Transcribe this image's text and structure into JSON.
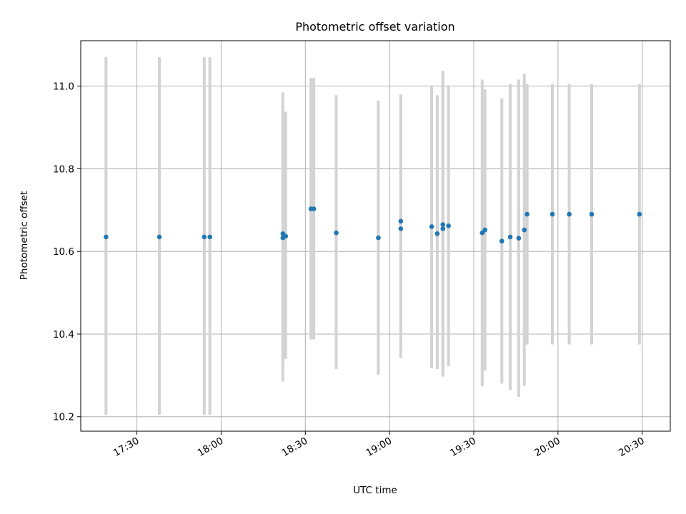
{
  "chart_data": {
    "type": "scatter",
    "title": "Photometric offset variation",
    "xlabel": "UTC time",
    "ylabel": "Photometric offset",
    "xlim": [
      "17:10",
      "20:40"
    ],
    "ylim": [
      10.165,
      11.11
    ],
    "x_ticks": [
      "17:30",
      "18:00",
      "18:30",
      "19:00",
      "19:30",
      "20:00",
      "20:30"
    ],
    "y_ticks": [
      "10.2",
      "10.4",
      "10.6",
      "10.8",
      "11.0"
    ],
    "grid": true,
    "marker_color": "#1f77b4",
    "errorbar_color": "#d3d3d3",
    "points": [
      {
        "t": "17:19",
        "y": 10.635,
        "lo": 10.205,
        "hi": 11.07
      },
      {
        "t": "17:38",
        "y": 10.635,
        "lo": 10.205,
        "hi": 11.07
      },
      {
        "t": "17:54",
        "y": 10.635,
        "lo": 10.205,
        "hi": 11.07
      },
      {
        "t": "17:56",
        "y": 10.635,
        "lo": 10.205,
        "hi": 11.07
      },
      {
        "t": "18:22",
        "y": 10.633,
        "lo": 10.285,
        "hi": 10.985
      },
      {
        "t": "18:22",
        "y": 10.643,
        "lo": 10.33,
        "hi": 10.955
      },
      {
        "t": "18:23",
        "y": 10.637,
        "lo": 10.34,
        "hi": 10.938
      },
      {
        "t": "18:32",
        "y": 10.703,
        "lo": 10.387,
        "hi": 11.02
      },
      {
        "t": "18:33",
        "y": 10.703,
        "lo": 10.387,
        "hi": 11.02
      },
      {
        "t": "18:41",
        "y": 10.645,
        "lo": 10.315,
        "hi": 10.978
      },
      {
        "t": "18:56",
        "y": 10.633,
        "lo": 10.302,
        "hi": 10.965
      },
      {
        "t": "19:04",
        "y": 10.655,
        "lo": 10.342,
        "hi": 10.97
      },
      {
        "t": "19:04",
        "y": 10.673,
        "lo": 10.37,
        "hi": 10.98
      },
      {
        "t": "19:15",
        "y": 10.66,
        "lo": 10.318,
        "hi": 11.002
      },
      {
        "t": "19:17",
        "y": 10.643,
        "lo": 10.315,
        "hi": 10.978
      },
      {
        "t": "19:19",
        "y": 10.665,
        "lo": 10.297,
        "hi": 11.037
      },
      {
        "t": "19:19",
        "y": 10.655,
        "lo": 10.305,
        "hi": 11.005
      },
      {
        "t": "19:21",
        "y": 10.662,
        "lo": 10.322,
        "hi": 11.002
      },
      {
        "t": "19:33",
        "y": 10.645,
        "lo": 10.274,
        "hi": 11.016
      },
      {
        "t": "19:34",
        "y": 10.652,
        "lo": 10.312,
        "hi": 10.992
      },
      {
        "t": "19:40",
        "y": 10.625,
        "lo": 10.28,
        "hi": 10.97
      },
      {
        "t": "19:43",
        "y": 10.635,
        "lo": 10.265,
        "hi": 11.005
      },
      {
        "t": "19:46",
        "y": 10.632,
        "lo": 10.248,
        "hi": 11.016
      },
      {
        "t": "19:48",
        "y": 10.652,
        "lo": 10.275,
        "hi": 11.03
      },
      {
        "t": "19:49",
        "y": 10.69,
        "lo": 10.375,
        "hi": 11.005
      },
      {
        "t": "19:58",
        "y": 10.69,
        "lo": 10.375,
        "hi": 11.005
      },
      {
        "t": "20:04",
        "y": 10.69,
        "lo": 10.375,
        "hi": 11.005
      },
      {
        "t": "20:12",
        "y": 10.69,
        "lo": 10.375,
        "hi": 11.005
      },
      {
        "t": "20:29",
        "y": 10.69,
        "lo": 10.375,
        "hi": 11.005
      }
    ]
  }
}
